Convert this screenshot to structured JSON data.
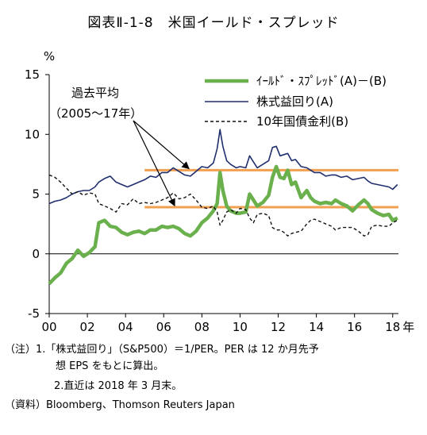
{
  "title": "図表Ⅱ-1-8　米国イールド・スプレッド",
  "notes": {
    "note1": "（注）1.「株式益回り」（S&P500）＝1/PER。PER は 12 か月先予",
    "note1_cont": "想 EPS をもとに算出。",
    "note2": "2.直近は 2018 年 3 月末。",
    "source": "（資料）Bloomberg、Thomson Reuters Japan"
  },
  "colors": {
    "spread": "#6ab04c",
    "earnings_yield": "#1f2f6e",
    "bond_yield": "#111111",
    "average_line": "#f0a050",
    "zero_line": "#000000"
  },
  "chart_data": {
    "type": "line",
    "ylabel": "%",
    "ylim": [
      -5,
      15
    ],
    "yticks": [
      -5,
      0,
      5,
      10,
      15
    ],
    "xlim": [
      2000,
      2018.3
    ],
    "xticks": [
      {
        "value": 2000,
        "label": "00"
      },
      {
        "value": 2002,
        "label": "02"
      },
      {
        "value": 2004,
        "label": "04"
      },
      {
        "value": 2006,
        "label": "06"
      },
      {
        "value": 2008,
        "label": "08"
      },
      {
        "value": 2010,
        "label": "10"
      },
      {
        "value": 2012,
        "label": "12"
      },
      {
        "value": 2014,
        "label": "14"
      },
      {
        "value": 2016,
        "label": "16"
      },
      {
        "value": 2018,
        "label": "18"
      }
    ],
    "x_unit": "年",
    "legend_position": "top-right",
    "annotation": {
      "line1": "過去平均",
      "line2": "（2005～17年）"
    },
    "averages": [
      {
        "value": 7.0,
        "from": 2005,
        "to": 2018.3
      },
      {
        "value": 3.9,
        "from": 2005,
        "to": 2018.3
      }
    ],
    "series": [
      {
        "name": "ｲｰﾙﾄﾞ・ｽﾌﾟﾚｯﾄﾞ(A)－(B)",
        "key": "spread",
        "points": [
          [
            2000.0,
            -2.5
          ],
          [
            2000.3,
            -2.0
          ],
          [
            2000.6,
            -1.6
          ],
          [
            2000.9,
            -0.8
          ],
          [
            2001.2,
            -0.4
          ],
          [
            2001.5,
            0.3
          ],
          [
            2001.8,
            -0.2
          ],
          [
            2002.1,
            0.1
          ],
          [
            2002.4,
            0.6
          ],
          [
            2002.6,
            2.6
          ],
          [
            2002.9,
            2.8
          ],
          [
            2003.2,
            2.3
          ],
          [
            2003.5,
            2.2
          ],
          [
            2003.8,
            1.8
          ],
          [
            2004.1,
            1.6
          ],
          [
            2004.4,
            1.8
          ],
          [
            2004.7,
            1.9
          ],
          [
            2005.0,
            1.7
          ],
          [
            2005.3,
            2.0
          ],
          [
            2005.6,
            2.0
          ],
          [
            2005.9,
            2.3
          ],
          [
            2006.2,
            2.2
          ],
          [
            2006.5,
            2.3
          ],
          [
            2006.8,
            2.1
          ],
          [
            2007.1,
            1.7
          ],
          [
            2007.4,
            1.5
          ],
          [
            2007.7,
            1.9
          ],
          [
            2008.0,
            2.6
          ],
          [
            2008.3,
            3.0
          ],
          [
            2008.6,
            3.6
          ],
          [
            2008.8,
            4.2
          ],
          [
            2008.95,
            6.8
          ],
          [
            2009.1,
            5.3
          ],
          [
            2009.3,
            4.0
          ],
          [
            2009.5,
            3.6
          ],
          [
            2009.8,
            3.4
          ],
          [
            2010.0,
            3.4
          ],
          [
            2010.3,
            3.5
          ],
          [
            2010.5,
            5.0
          ],
          [
            2010.7,
            4.5
          ],
          [
            2010.9,
            4.0
          ],
          [
            2011.2,
            4.3
          ],
          [
            2011.5,
            4.9
          ],
          [
            2011.7,
            6.4
          ],
          [
            2011.9,
            7.3
          ],
          [
            2012.1,
            6.4
          ],
          [
            2012.3,
            6.3
          ],
          [
            2012.5,
            7.0
          ],
          [
            2012.7,
            5.8
          ],
          [
            2012.9,
            6.0
          ],
          [
            2013.2,
            4.7
          ],
          [
            2013.5,
            5.3
          ],
          [
            2013.7,
            4.7
          ],
          [
            2013.9,
            4.4
          ],
          [
            2014.2,
            4.2
          ],
          [
            2014.5,
            4.3
          ],
          [
            2014.8,
            4.2
          ],
          [
            2015.0,
            4.5
          ],
          [
            2015.3,
            4.2
          ],
          [
            2015.6,
            4.0
          ],
          [
            2015.9,
            3.6
          ],
          [
            2016.2,
            4.1
          ],
          [
            2016.5,
            4.5
          ],
          [
            2016.7,
            4.2
          ],
          [
            2016.9,
            3.7
          ],
          [
            2017.2,
            3.4
          ],
          [
            2017.5,
            3.2
          ],
          [
            2017.8,
            3.3
          ],
          [
            2018.0,
            2.8
          ],
          [
            2018.25,
            3.0
          ]
        ]
      },
      {
        "name": "株式益回り(A)",
        "key": "earnings_yield",
        "points": [
          [
            2000.0,
            4.2
          ],
          [
            2000.3,
            4.4
          ],
          [
            2000.6,
            4.5
          ],
          [
            2000.9,
            4.7
          ],
          [
            2001.2,
            5.0
          ],
          [
            2001.5,
            5.2
          ],
          [
            2001.8,
            5.3
          ],
          [
            2002.1,
            5.3
          ],
          [
            2002.4,
            5.6
          ],
          [
            2002.6,
            6.0
          ],
          [
            2002.9,
            6.3
          ],
          [
            2003.2,
            6.5
          ],
          [
            2003.5,
            6.0
          ],
          [
            2003.8,
            5.8
          ],
          [
            2004.1,
            5.6
          ],
          [
            2004.4,
            5.8
          ],
          [
            2004.7,
            6.0
          ],
          [
            2005.0,
            6.2
          ],
          [
            2005.3,
            6.5
          ],
          [
            2005.6,
            6.4
          ],
          [
            2005.9,
            6.8
          ],
          [
            2006.2,
            6.8
          ],
          [
            2006.5,
            7.2
          ],
          [
            2006.8,
            6.9
          ],
          [
            2007.1,
            6.6
          ],
          [
            2007.4,
            6.5
          ],
          [
            2007.7,
            6.9
          ],
          [
            2008.0,
            7.3
          ],
          [
            2008.3,
            7.2
          ],
          [
            2008.6,
            7.6
          ],
          [
            2008.8,
            8.8
          ],
          [
            2008.95,
            10.4
          ],
          [
            2009.1,
            9.0
          ],
          [
            2009.3,
            7.8
          ],
          [
            2009.5,
            7.5
          ],
          [
            2009.8,
            7.2
          ],
          [
            2010.0,
            7.3
          ],
          [
            2010.3,
            7.2
          ],
          [
            2010.5,
            8.2
          ],
          [
            2010.7,
            7.7
          ],
          [
            2010.9,
            7.2
          ],
          [
            2011.2,
            7.5
          ],
          [
            2011.5,
            7.8
          ],
          [
            2011.7,
            8.9
          ],
          [
            2011.9,
            9.0
          ],
          [
            2012.1,
            8.2
          ],
          [
            2012.3,
            8.3
          ],
          [
            2012.5,
            8.4
          ],
          [
            2012.7,
            7.8
          ],
          [
            2012.9,
            7.9
          ],
          [
            2013.2,
            7.3
          ],
          [
            2013.5,
            7.2
          ],
          [
            2013.7,
            7.0
          ],
          [
            2013.9,
            6.8
          ],
          [
            2014.2,
            6.8
          ],
          [
            2014.5,
            6.5
          ],
          [
            2014.8,
            6.6
          ],
          [
            2015.0,
            6.6
          ],
          [
            2015.3,
            6.4
          ],
          [
            2015.6,
            6.5
          ],
          [
            2015.9,
            6.2
          ],
          [
            2016.2,
            6.3
          ],
          [
            2016.5,
            6.4
          ],
          [
            2016.7,
            6.1
          ],
          [
            2016.9,
            5.9
          ],
          [
            2017.2,
            5.8
          ],
          [
            2017.5,
            5.7
          ],
          [
            2017.8,
            5.6
          ],
          [
            2018.0,
            5.4
          ],
          [
            2018.25,
            5.8
          ]
        ]
      },
      {
        "name": "10年国債金利(B)",
        "key": "bond_yield",
        "dashed": true,
        "points": [
          [
            2000.0,
            6.6
          ],
          [
            2000.3,
            6.4
          ],
          [
            2000.6,
            6.0
          ],
          [
            2000.9,
            5.5
          ],
          [
            2001.2,
            5.0
          ],
          [
            2001.5,
            5.2
          ],
          [
            2001.8,
            4.9
          ],
          [
            2002.1,
            5.1
          ],
          [
            2002.4,
            5.0
          ],
          [
            2002.6,
            4.2
          ],
          [
            2002.9,
            4.0
          ],
          [
            2003.2,
            3.8
          ],
          [
            2003.5,
            3.5
          ],
          [
            2003.8,
            4.2
          ],
          [
            2004.1,
            4.1
          ],
          [
            2004.4,
            4.6
          ],
          [
            2004.7,
            4.2
          ],
          [
            2005.0,
            4.3
          ],
          [
            2005.3,
            4.2
          ],
          [
            2005.6,
            4.3
          ],
          [
            2005.9,
            4.5
          ],
          [
            2006.2,
            4.7
          ],
          [
            2006.5,
            5.1
          ],
          [
            2006.8,
            4.6
          ],
          [
            2007.1,
            4.7
          ],
          [
            2007.4,
            5.0
          ],
          [
            2007.7,
            4.5
          ],
          [
            2008.0,
            3.9
          ],
          [
            2008.3,
            3.8
          ],
          [
            2008.6,
            4.0
          ],
          [
            2008.8,
            3.5
          ],
          [
            2008.95,
            2.4
          ],
          [
            2009.1,
            2.8
          ],
          [
            2009.3,
            3.5
          ],
          [
            2009.5,
            3.7
          ],
          [
            2009.8,
            3.4
          ],
          [
            2010.0,
            3.8
          ],
          [
            2010.3,
            3.7
          ],
          [
            2010.5,
            3.0
          ],
          [
            2010.7,
            2.6
          ],
          [
            2010.9,
            3.3
          ],
          [
            2011.2,
            3.4
          ],
          [
            2011.5,
            3.2
          ],
          [
            2011.7,
            2.2
          ],
          [
            2011.9,
            2.0
          ],
          [
            2012.1,
            2.0
          ],
          [
            2012.3,
            1.8
          ],
          [
            2012.5,
            1.5
          ],
          [
            2012.7,
            1.7
          ],
          [
            2012.9,
            1.8
          ],
          [
            2013.2,
            1.9
          ],
          [
            2013.5,
            2.5
          ],
          [
            2013.7,
            2.8
          ],
          [
            2013.9,
            2.9
          ],
          [
            2014.2,
            2.7
          ],
          [
            2014.5,
            2.5
          ],
          [
            2014.8,
            2.3
          ],
          [
            2015.0,
            2.0
          ],
          [
            2015.3,
            2.2
          ],
          [
            2015.6,
            2.2
          ],
          [
            2015.9,
            2.2
          ],
          [
            2016.2,
            1.9
          ],
          [
            2016.5,
            1.5
          ],
          [
            2016.7,
            1.6
          ],
          [
            2016.9,
            2.3
          ],
          [
            2017.2,
            2.4
          ],
          [
            2017.5,
            2.3
          ],
          [
            2017.8,
            2.3
          ],
          [
            2018.0,
            2.6
          ],
          [
            2018.25,
            2.8
          ]
        ]
      }
    ]
  }
}
